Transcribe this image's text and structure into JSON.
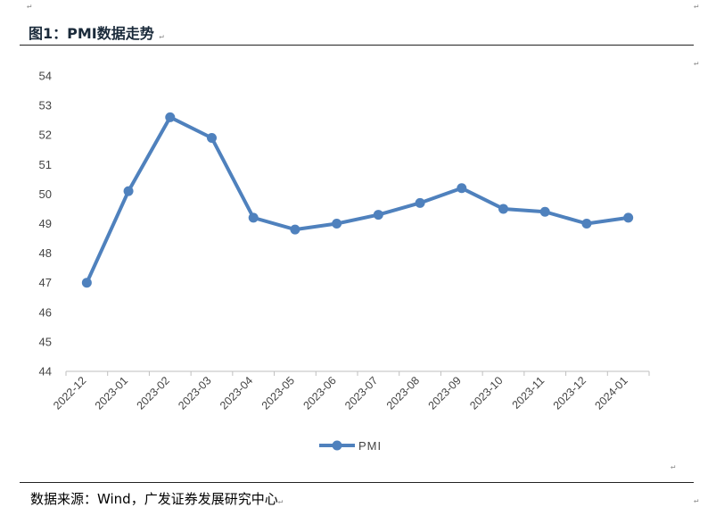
{
  "title": "图1：PMI数据走势",
  "source": "数据来源：Wind，广发证券发展研究中心",
  "para_mark": "↵",
  "chart_data": {
    "type": "line",
    "title": "",
    "xlabel": "",
    "ylabel": "",
    "categories": [
      "2022-12",
      "2023-01",
      "2023-02",
      "2023-03",
      "2023-04",
      "2023-05",
      "2023-06",
      "2023-07",
      "2023-08",
      "2023-09",
      "2023-10",
      "2023-11",
      "2023-12",
      "2024-01"
    ],
    "series": [
      {
        "name": "PMI",
        "color": "#4f81bd",
        "values": [
          47.0,
          50.1,
          52.6,
          51.9,
          49.2,
          48.8,
          49.0,
          49.3,
          49.7,
          50.2,
          49.5,
          49.4,
          49.0,
          49.2
        ]
      }
    ],
    "ylim": [
      44,
      54
    ],
    "yticks": [
      44,
      45,
      46,
      47,
      48,
      49,
      50,
      51,
      52,
      53,
      54
    ],
    "grid": false,
    "legend": "bottom"
  }
}
